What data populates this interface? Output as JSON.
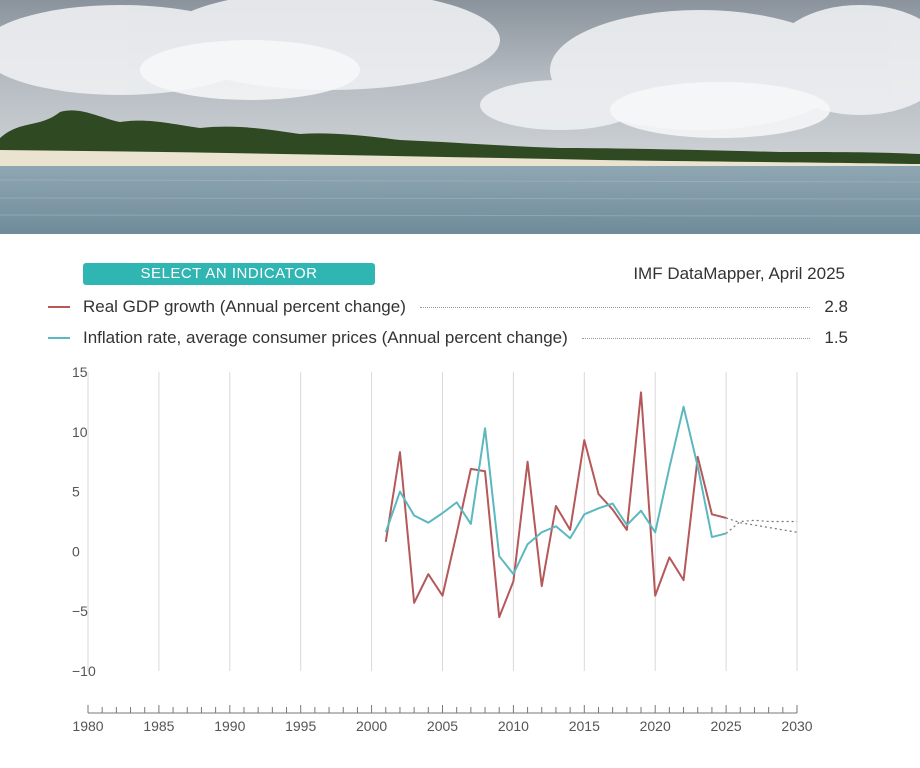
{
  "header": {
    "indicator_button": "SELECT AN INDICATOR",
    "source": "IMF DataMapper, April 2025"
  },
  "legend": [
    {
      "label": "Real GDP growth (Annual percent change)",
      "value": "2.8"
    },
    {
      "label": "Inflation rate, average consumer prices (Annual percent change)",
      "value": "1.5"
    }
  ],
  "colors": {
    "accent": "#2fb5b2",
    "gdp": "#b5585a",
    "inflation": "#5bb8c0",
    "grid": "#d9d9d9",
    "axis_text": "#555555"
  },
  "chart_data": {
    "type": "line",
    "title": "",
    "xlabel": "",
    "ylabel": "",
    "xlim": [
      1980,
      2030
    ],
    "ylim": [
      -10,
      15
    ],
    "x_ticks": [
      1980,
      1985,
      1990,
      1995,
      2000,
      2005,
      2010,
      2015,
      2020,
      2025,
      2030
    ],
    "y_ticks": [
      15,
      10,
      5,
      0,
      -5,
      -10
    ],
    "grid": "vertical",
    "series": [
      {
        "name": "Real GDP growth (Annual percent change)",
        "color": "#b5585a",
        "x": [
          2001,
          2002,
          2003,
          2004,
          2005,
          2006,
          2007,
          2008,
          2009,
          2010,
          2011,
          2012,
          2013,
          2014,
          2015,
          2016,
          2017,
          2018,
          2019,
          2020,
          2021,
          2022,
          2023,
          2024,
          2025
        ],
        "values": [
          0.8,
          8.3,
          -4.3,
          -1.9,
          -3.7,
          1.5,
          6.9,
          6.7,
          -5.5,
          -2.5,
          7.5,
          -2.9,
          3.8,
          1.8,
          9.3,
          4.8,
          3.5,
          1.8,
          13.3,
          -3.7,
          -0.5,
          -2.4,
          7.9,
          3.1,
          2.8
        ],
        "projection": {
          "x": [
            2025,
            2026,
            2027,
            2028,
            2029,
            2030
          ],
          "values": [
            2.8,
            2.4,
            2.2,
            2.0,
            1.8,
            1.6
          ]
        }
      },
      {
        "name": "Inflation rate, average consumer prices (Annual percent change)",
        "color": "#5bb8c0",
        "x": [
          2001,
          2002,
          2003,
          2004,
          2005,
          2006,
          2007,
          2008,
          2009,
          2010,
          2011,
          2012,
          2013,
          2014,
          2015,
          2016,
          2017,
          2018,
          2019,
          2020,
          2021,
          2022,
          2023,
          2024,
          2025
        ],
        "values": [
          1.6,
          5.0,
          3.0,
          2.4,
          3.2,
          4.1,
          2.3,
          10.3,
          -0.4,
          -1.9,
          0.6,
          1.6,
          2.1,
          1.1,
          3.1,
          3.6,
          4.0,
          2.2,
          3.4,
          1.6,
          7.0,
          12.1,
          7.1,
          1.2,
          1.5
        ],
        "projection": {
          "x": [
            2025,
            2026,
            2027,
            2028,
            2029,
            2030
          ],
          "values": [
            1.5,
            2.5,
            2.6,
            2.5,
            2.5,
            2.5
          ]
        }
      }
    ]
  }
}
